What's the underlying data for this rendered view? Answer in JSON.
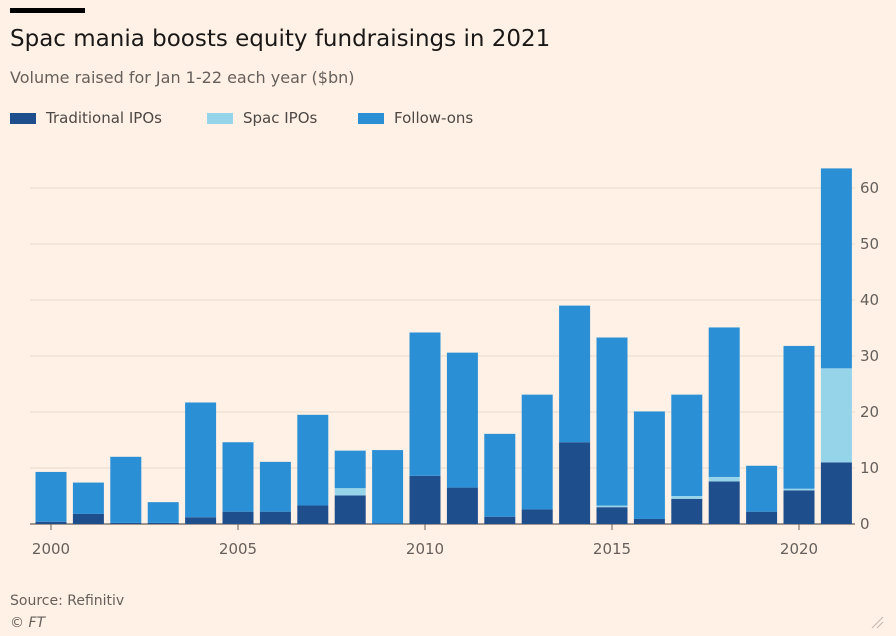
{
  "header": {
    "title": "Spac mania boosts equity fundraisings in 2021",
    "subtitle": "Volume raised for Jan 1-22 each year ($bn)"
  },
  "footer": {
    "source": "Source: Refinitiv",
    "credit": "© FT"
  },
  "icons": {
    "brand_bar": "ft-brand-bar",
    "corner": "resize-icon"
  },
  "colors": {
    "background": "#fff1e5",
    "traditional": "#1f4e8c",
    "spac": "#96d4ea",
    "follow_on": "#2b8fd6",
    "grid": "#e6d9ce",
    "axis": "#66605c"
  },
  "chart_data": {
    "type": "bar",
    "stacked": true,
    "title": "Spac mania boosts equity fundraisings in 2021",
    "subtitle": "Volume raised for Jan 1-22 each year ($bn)",
    "xlabel": "",
    "ylabel": "",
    "x": [
      2000,
      2001,
      2002,
      2003,
      2004,
      2005,
      2006,
      2007,
      2008,
      2009,
      2010,
      2011,
      2012,
      2013,
      2014,
      2015,
      2016,
      2017,
      2018,
      2019,
      2020,
      2021
    ],
    "x_ticks": [
      2000,
      2005,
      2010,
      2015,
      2020
    ],
    "x_tick_labels": [
      "2000",
      "2005",
      "2010",
      "2015",
      "2020"
    ],
    "ylim": [
      0,
      65
    ],
    "y_ticks": [
      0,
      10,
      20,
      30,
      40,
      50,
      60
    ],
    "y_tick_labels": [
      "0",
      "10",
      "20",
      "30",
      "40",
      "50",
      "60"
    ],
    "y_axis_position": "right",
    "grid": true,
    "legend_position": "top-left",
    "series": [
      {
        "name": "Traditional IPOs",
        "color": "#1f4e8c",
        "values": [
          0.4,
          1.8,
          0.2,
          0.2,
          1.2,
          2.2,
          2.2,
          3.3,
          5.1,
          0.1,
          8.6,
          6.5,
          1.3,
          2.6,
          14.6,
          3.0,
          0.9,
          4.5,
          7.6,
          2.2,
          6.0,
          11.0
        ]
      },
      {
        "name": "Spac IPOs",
        "color": "#96d4ea",
        "values": [
          0,
          0,
          0,
          0,
          0,
          0,
          0,
          0,
          1.3,
          0,
          0,
          0,
          0,
          0,
          0,
          0.3,
          0,
          0.5,
          0.8,
          0,
          0.3,
          16.8
        ]
      },
      {
        "name": "Follow-ons",
        "color": "#2b8fd6",
        "values": [
          8.9,
          5.6,
          11.8,
          3.7,
          20.5,
          12.4,
          8.9,
          16.2,
          6.7,
          13.1,
          25.6,
          24.1,
          14.8,
          20.5,
          24.4,
          30.0,
          19.2,
          18.1,
          26.7,
          8.2,
          25.5,
          35.7
        ]
      }
    ]
  }
}
